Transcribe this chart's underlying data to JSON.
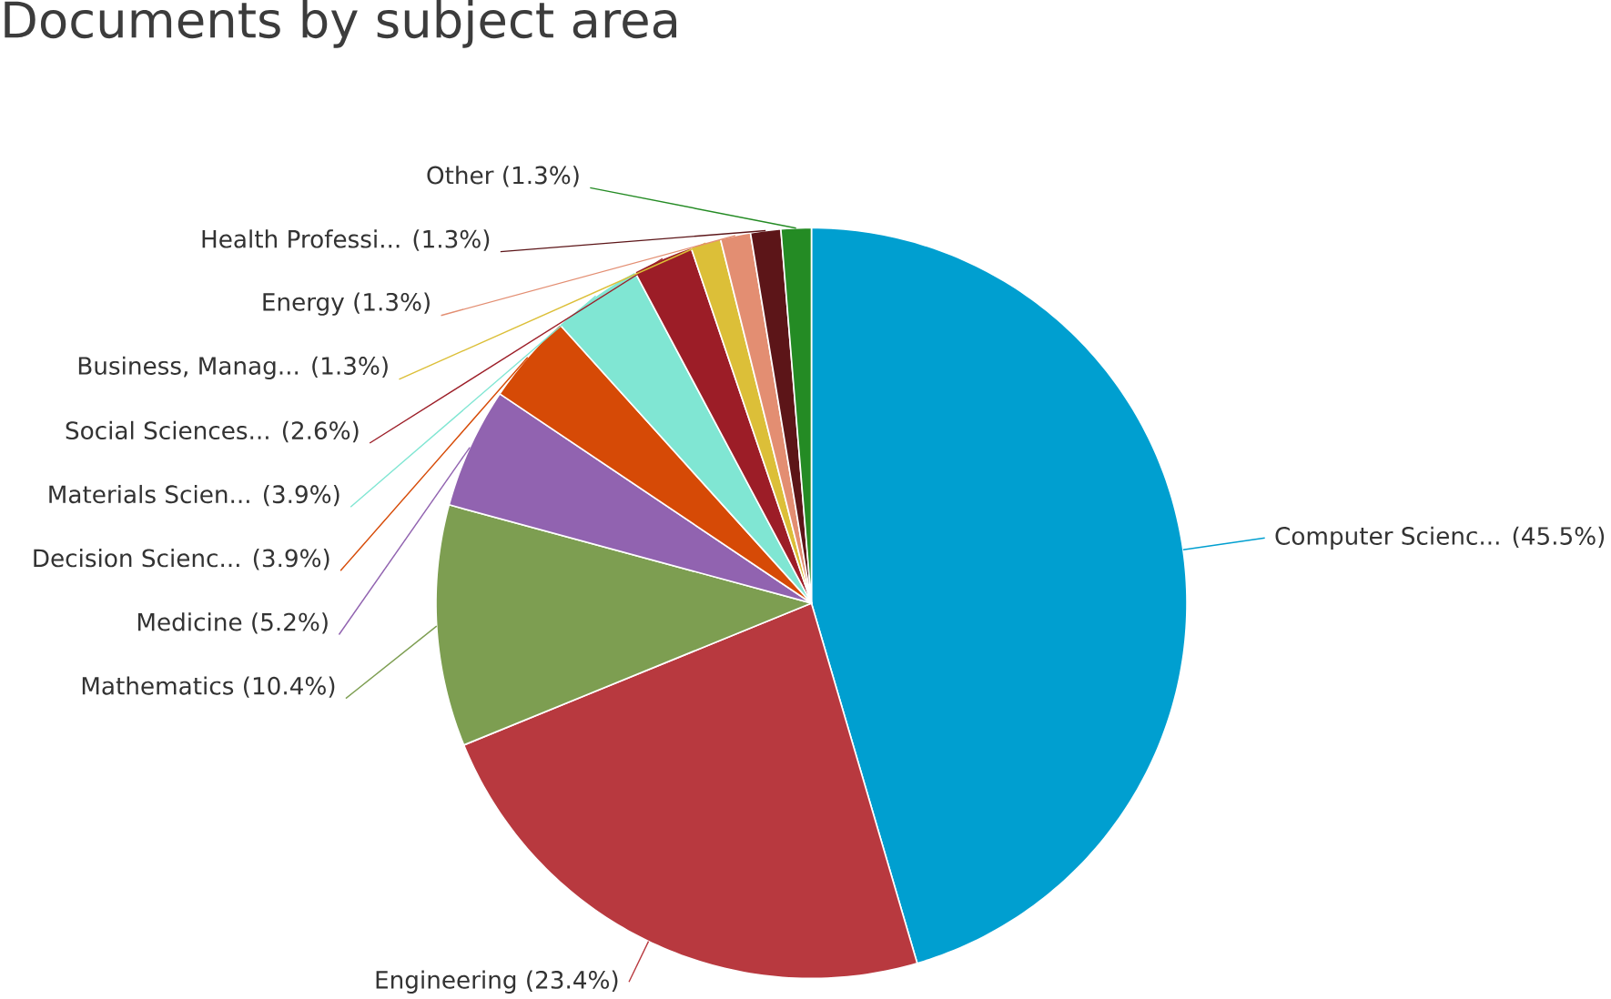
{
  "chart_data": {
    "type": "pie",
    "title": "Documents by subject area",
    "categories": [
      "Computer Scienc...",
      "Engineering",
      "Mathematics",
      "Medicine",
      "Decision Scienc...",
      "Materials Scien...",
      "Social Sciences...",
      "Business, Manag...",
      "Energy",
      "Health Professi...",
      "Other"
    ],
    "values": [
      45.5,
      23.4,
      10.4,
      5.2,
      3.9,
      3.9,
      2.6,
      1.3,
      1.3,
      1.3,
      1.3
    ],
    "value_labels": [
      "(45.5%)",
      "(23.4%)",
      "(10.4%)",
      "(5.2%)",
      "(3.9%)",
      "(3.9%)",
      "(2.6%)",
      "(1.3%)",
      "(1.3%)",
      "(1.3%)",
      "(1.3%)"
    ],
    "colors": [
      "#009fd0",
      "#b8393f",
      "#7d9e51",
      "#9163b0",
      "#d64a06",
      "#80e6d3",
      "#9c1d27",
      "#dcbf38",
      "#e38e72",
      "#5c1518",
      "#248b24"
    ]
  }
}
